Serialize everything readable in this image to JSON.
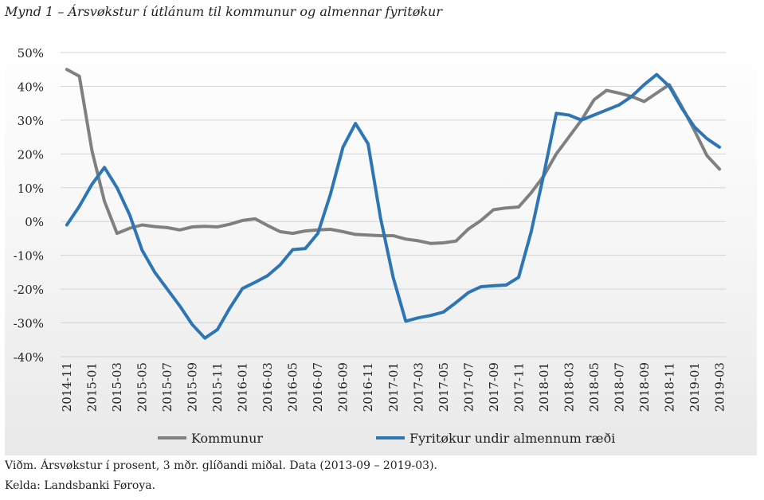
{
  "title": "Mynd 1 – Ársvøkstur í útlánum til kommunur og almennar fyritøkur",
  "footnotes": {
    "line1": "Viðm. Ársvøkstur í prosent, 3 mðr. glíðandi miðal. Data (2013-09 – 2019-03).",
    "line2": "Kelda: Landsbanki Føroya."
  },
  "chart_data": {
    "type": "line",
    "x": [
      "2014-11",
      "2014-12",
      "2015-01",
      "2015-02",
      "2015-03",
      "2015-04",
      "2015-05",
      "2015-06",
      "2015-07",
      "2015-08",
      "2015-09",
      "2015-10",
      "2015-11",
      "2015-12",
      "2016-01",
      "2016-02",
      "2016-03",
      "2016-04",
      "2016-05",
      "2016-06",
      "2016-07",
      "2016-08",
      "2016-09",
      "2016-10",
      "2016-11",
      "2016-12",
      "2017-01",
      "2017-02",
      "2017-03",
      "2017-04",
      "2017-05",
      "2017-06",
      "2017-07",
      "2017-08",
      "2017-09",
      "2017-10",
      "2017-11",
      "2017-12",
      "2018-01",
      "2018-02",
      "2018-03",
      "2018-04",
      "2018-05",
      "2018-06",
      "2018-07",
      "2018-08",
      "2018-09",
      "2018-10",
      "2018-11",
      "2018-12",
      "2019-01",
      "2019-02",
      "2019-03"
    ],
    "x_tick_labels": [
      "2014-11",
      "2015-01",
      "2015-03",
      "2015-05",
      "2015-07",
      "2015-09",
      "2015-11",
      "2016-01",
      "2016-03",
      "2016-05",
      "2016-07",
      "2016-09",
      "2016-11",
      "2017-01",
      "2017-03",
      "2017-05",
      "2017-07",
      "2017-09",
      "2017-11",
      "2018-01",
      "2018-03",
      "2018-05",
      "2018-07",
      "2018-09",
      "2018-11",
      "2019-01",
      "2019-03"
    ],
    "y_ticks": [
      "50%",
      "40%",
      "30%",
      "20%",
      "10%",
      "0%",
      "-10%",
      "-20%",
      "-30%",
      "-40%"
    ],
    "ylim": [
      -40,
      50
    ],
    "y_unit": "%",
    "grid": true,
    "legend_position": "bottom",
    "series": [
      {
        "name": "Kommunur",
        "color": "#808080",
        "values": [
          45,
          43,
          21,
          6,
          -3.5,
          -2,
          -1,
          -1.5,
          -1.8,
          -2.5,
          -1.6,
          -1.4,
          -1.6,
          -0.8,
          0.3,
          0.8,
          -1.2,
          -3,
          -3.5,
          -2.8,
          -2.5,
          -2.3,
          -3,
          -3.8,
          -4,
          -4.2,
          -4.2,
          -5.2,
          -5.7,
          -6.5,
          -6.3,
          -5.8,
          -2.2,
          0.3,
          3.5,
          4,
          4.3,
          8.5,
          13.5,
          20,
          25,
          30,
          36,
          38.8,
          38,
          37,
          35.5,
          38,
          40.5,
          34,
          27,
          19.5,
          15.5
        ]
      },
      {
        "name": "Fyritøkur undir almennum ræði",
        "color": "#2e75b6",
        "values": [
          -1,
          4.5,
          11,
          16,
          10,
          2,
          -8.5,
          -15,
          -20,
          -25,
          -30.5,
          -34.5,
          -32,
          -25.5,
          -19.8,
          -18,
          -16,
          -12.8,
          -8.3,
          -8,
          -3.5,
          8,
          22,
          29,
          23,
          1,
          -16.5,
          -29.5,
          -28.5,
          -27.8,
          -26.8,
          -24,
          -21,
          -19.3,
          -19,
          -18.8,
          -16.5,
          -3,
          14,
          32,
          31.5,
          30,
          31.5,
          33,
          34.5,
          37,
          40.5,
          43.5,
          40,
          33.5,
          28,
          24.5,
          22
        ]
      }
    ]
  }
}
